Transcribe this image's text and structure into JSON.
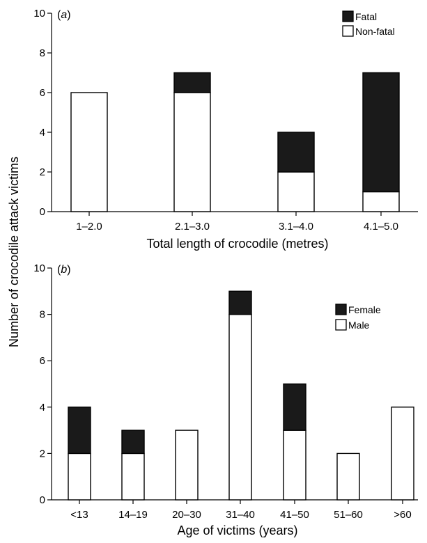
{
  "ylabel": "Number of crocodile attack victims",
  "colors": {
    "fatal": "#1a1a1a",
    "non_fatal": "#ffffff",
    "outline": "#000000"
  },
  "chart_data": [
    {
      "type": "bar",
      "stacked": true,
      "panel_label_open": "(",
      "panel_label_letter": "a",
      "panel_label_close": ")",
      "title": "",
      "xlabel": "Total length of crocodile (metres)",
      "ylabel": "Number of crocodile attack victims",
      "ylim": [
        0,
        10
      ],
      "yticks": [
        "0",
        "2",
        "4",
        "6",
        "8",
        "10"
      ],
      "categories": [
        "1–2.0",
        "2.1–3.0",
        "3.1–4.0",
        "4.1–5.0"
      ],
      "series": [
        {
          "name": "Non-fatal",
          "color": "#ffffff",
          "values": [
            6,
            6,
            2,
            1
          ]
        },
        {
          "name": "Fatal",
          "color": "#1a1a1a",
          "values": [
            0,
            1,
            2,
            6
          ]
        }
      ],
      "legend": {
        "placement": "top-right",
        "entries": [
          "Fatal",
          "Non-fatal"
        ]
      },
      "grid": false
    },
    {
      "type": "bar",
      "stacked": true,
      "panel_label_open": "(",
      "panel_label_letter": "b",
      "panel_label_close": ")",
      "title": "",
      "xlabel": "Age of victims (years)",
      "ylabel": "Number of crocodile attack victims",
      "ylim": [
        0,
        10
      ],
      "yticks": [
        "0",
        "2",
        "4",
        "6",
        "8",
        "10"
      ],
      "categories": [
        "<13",
        "14–19",
        "20–30",
        "31–40",
        "41–50",
        "51–60",
        ">60"
      ],
      "series": [
        {
          "name": "Male",
          "color": "#ffffff",
          "values": [
            2,
            2,
            3,
            8,
            3,
            2,
            4
          ]
        },
        {
          "name": "Female",
          "color": "#1a1a1a",
          "values": [
            2,
            1,
            0,
            1,
            2,
            0,
            0
          ]
        }
      ],
      "legend": {
        "placement": "right",
        "entries": [
          "Female",
          "Male"
        ]
      },
      "grid": false
    }
  ]
}
